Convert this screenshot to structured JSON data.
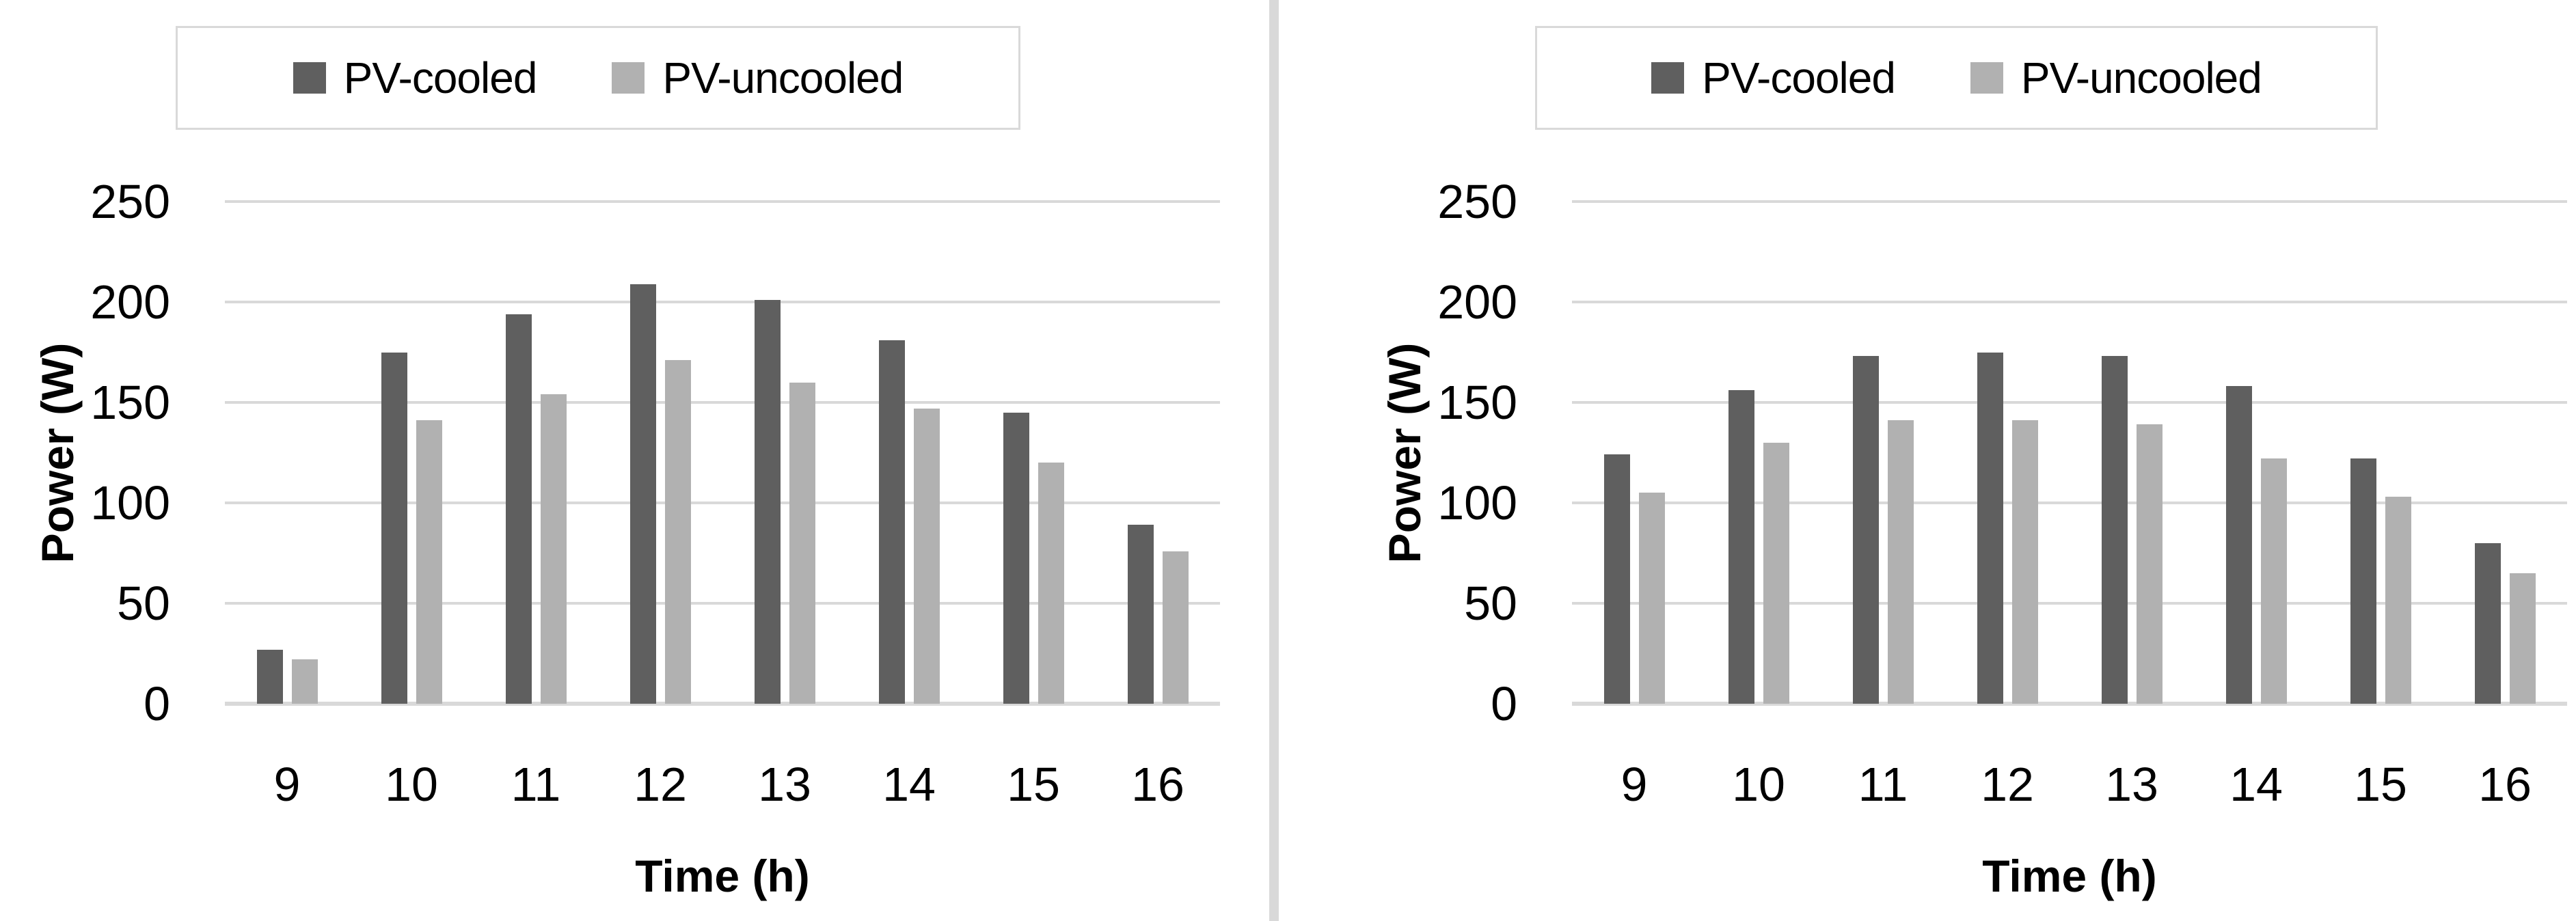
{
  "page": {
    "background": "#ffffff",
    "divider_color": "#d9d9d9"
  },
  "chart_data": [
    {
      "type": "bar",
      "panel": "left",
      "title": "",
      "categories": [
        "9",
        "10",
        "11",
        "12",
        "13",
        "14",
        "15",
        "16"
      ],
      "series": [
        {
          "name": "PV-cooled",
          "color": "#5f5f5f",
          "values": [
            27,
            175,
            194,
            209,
            201,
            181,
            145,
            89
          ]
        },
        {
          "name": "PV-uncooled",
          "color": "#b1b1b1",
          "values": [
            22,
            141,
            154,
            171,
            160,
            147,
            120,
            76
          ]
        }
      ],
      "xlabel": "Time (h)",
      "ylabel": "Power (W)",
      "ylim": [
        0,
        250
      ],
      "yticks": [
        0,
        50,
        100,
        150,
        200,
        250
      ],
      "grid": true,
      "gridline_color": "#d9d9d9",
      "legend_position": "top"
    },
    {
      "type": "bar",
      "panel": "right",
      "title": "",
      "categories": [
        "9",
        "10",
        "11",
        "12",
        "13",
        "14",
        "15",
        "16"
      ],
      "series": [
        {
          "name": "PV-cooled",
          "color": "#5f5f5f",
          "values": [
            124,
            156,
            173,
            175,
            173,
            158,
            122,
            80
          ]
        },
        {
          "name": "PV-uncooled",
          "color": "#b1b1b1",
          "values": [
            105,
            130,
            141,
            141,
            139,
            122,
            103,
            65
          ]
        }
      ],
      "xlabel": "Time (h)",
      "ylabel": "Power (W)",
      "ylim": [
        0,
        250
      ],
      "yticks": [
        0,
        50,
        100,
        150,
        200,
        250
      ],
      "grid": true,
      "gridline_color": "#d9d9d9",
      "legend_position": "top"
    }
  ]
}
